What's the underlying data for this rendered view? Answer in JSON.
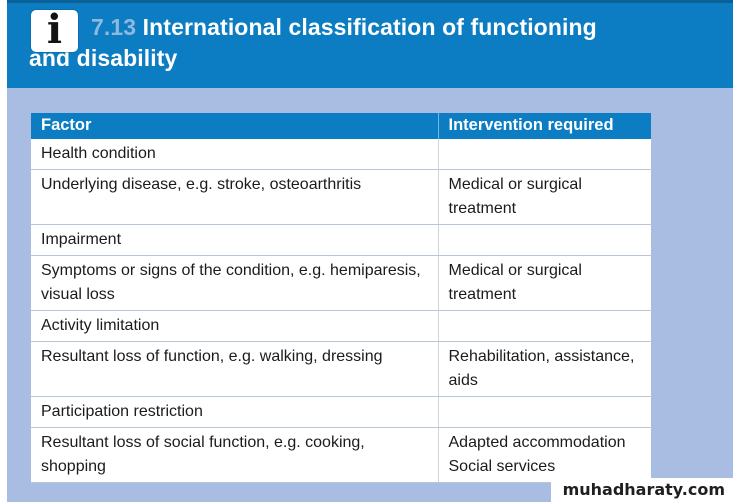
{
  "banner": {
    "number": "7.13",
    "title": "International classification of functioning and disability",
    "icon_glyph": "i"
  },
  "table": {
    "headers": [
      "Factor",
      "Intervention required"
    ],
    "rows": [
      {
        "factor": "Health condition",
        "intervention": ""
      },
      {
        "factor": "Underlying disease, e.g. stroke, osteoarthritis",
        "intervention": "Medical or surgical treatment"
      },
      {
        "factor": "Impairment",
        "intervention": ""
      },
      {
        "factor": "Symptoms or signs of the condition, e.g. hemiparesis, visual loss",
        "intervention": "Medical or surgical treatment"
      },
      {
        "factor": "Activity limitation",
        "intervention": ""
      },
      {
        "factor": "Resultant loss of function, e.g. walking, dressing",
        "intervention": "Rehabilitation, assistance, aids"
      },
      {
        "factor": "Participation restriction",
        "intervention": ""
      },
      {
        "factor": "Resultant loss of social function, e.g. cooking, shopping",
        "intervention": "Adapted accommodation\nSocial services"
      }
    ]
  },
  "watermark": {
    "text": "muhadharaty.com"
  },
  "colors": {
    "banner_blue": "#0c7dc2",
    "banner_top_border": "#0a6198",
    "box_number_blue": "#8cb9dd",
    "page_background": "#a8bde1",
    "header_blue": "#0c7dc2",
    "row_border": "#b9c6d8",
    "column_divider": "#ccd4de",
    "body_text": "#1b1b1b"
  }
}
